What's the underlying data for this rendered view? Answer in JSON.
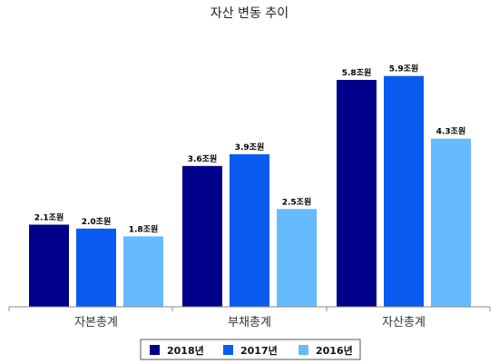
{
  "chart_data": {
    "type": "bar",
    "title": "자산 변동 추이",
    "xlabel": "",
    "ylabel": "",
    "categories": [
      "자본총계",
      "부채총계",
      "자산총계"
    ],
    "ylim": [
      0,
      6.5
    ],
    "grid": false,
    "legend_position": "bottom",
    "unit_suffix": "조원",
    "series": [
      {
        "name": "2018년",
        "color": "#00008B",
        "values": [
          2.1,
          3.6,
          5.8
        ]
      },
      {
        "name": "2017년",
        "color": "#0A5BF0",
        "values": [
          2.0,
          3.9,
          5.9
        ]
      },
      {
        "name": "2016년",
        "color": "#66BBFF",
        "values": [
          1.8,
          2.5,
          4.3
        ]
      }
    ]
  }
}
